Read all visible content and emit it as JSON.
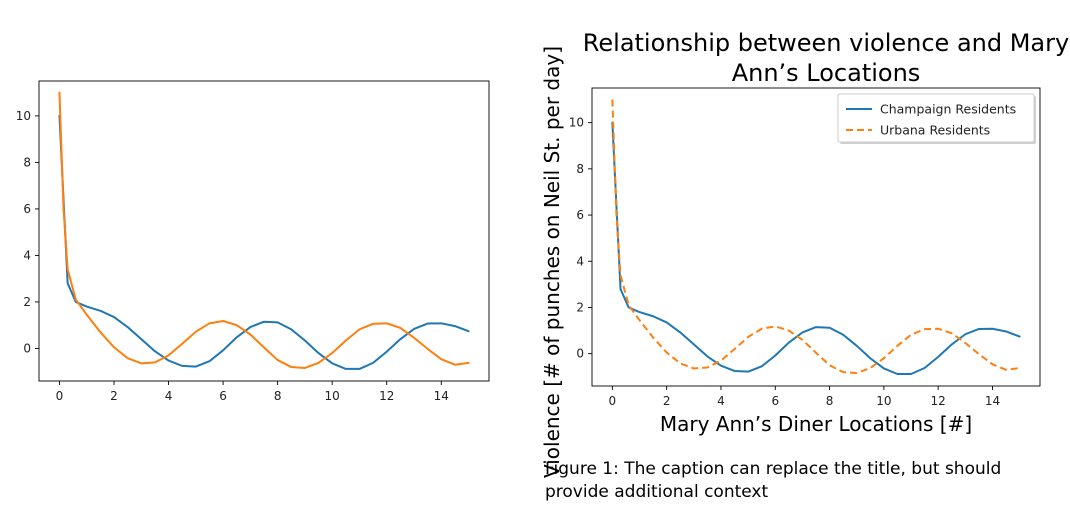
{
  "chart_data": [
    {
      "type": "line",
      "title": "",
      "xlabel": "",
      "ylabel": "",
      "xlim": [
        -0.75,
        15.75
      ],
      "ylim": [
        -1.4,
        11.5
      ],
      "x_ticks": [
        0,
        2,
        4,
        6,
        8,
        10,
        12,
        14
      ],
      "y_ticks": [
        0,
        2,
        4,
        6,
        8,
        10
      ],
      "grid": false,
      "legend": null,
      "series": [
        {
          "color": "#1f77b4",
          "x": [
            0,
            0.3,
            0.6,
            1,
            1.5,
            2,
            2.5,
            3,
            3.5,
            4,
            4.5,
            5,
            5.5,
            6,
            6.5,
            7,
            7.5,
            8,
            8.5,
            9,
            9.5,
            10,
            10.5,
            11,
            11.5,
            12,
            12.5,
            13,
            13.5,
            14,
            14.5,
            15
          ],
          "values": [
            10,
            2.8,
            2.0,
            1.8,
            1.62,
            1.35,
            0.92,
            0.4,
            -0.12,
            -0.52,
            -0.75,
            -0.78,
            -0.55,
            -0.08,
            0.48,
            0.92,
            1.15,
            1.12,
            0.82,
            0.34,
            -0.2,
            -0.64,
            -0.88,
            -0.88,
            -0.62,
            -0.14,
            0.4,
            0.84,
            1.07,
            1.08,
            0.96,
            0.74
          ]
        },
        {
          "color": "#ff7f0e",
          "x": [
            0,
            0.15,
            0.3,
            0.6,
            1,
            1.5,
            2,
            2.5,
            3,
            3.5,
            4,
            4.5,
            5,
            5.5,
            6,
            6.5,
            7,
            7.5,
            8,
            8.5,
            9,
            9.5,
            10,
            10.5,
            11,
            11.5,
            12,
            12.5,
            13,
            13.5,
            14,
            14.5,
            15
          ],
          "values": [
            11,
            6.0,
            3.4,
            2.1,
            1.45,
            0.7,
            0.05,
            -0.42,
            -0.64,
            -0.6,
            -0.3,
            0.2,
            0.72,
            1.08,
            1.18,
            1.0,
            0.6,
            0.04,
            -0.5,
            -0.8,
            -0.84,
            -0.62,
            -0.2,
            0.34,
            0.82,
            1.06,
            1.08,
            0.88,
            0.46,
            -0.02,
            -0.46,
            -0.7,
            -0.62
          ]
        }
      ]
    },
    {
      "type": "line",
      "title": "Relationship between violence and Mary Ann’s Locations",
      "title_lines": [
        "Relationship between violence and Mary",
        "Ann’s Locations"
      ],
      "xlabel": "Mary Ann’s Diner Locations [#]",
      "ylabel": "Violence [# of punches on Neil St. per day]",
      "xlim": [
        -0.75,
        15.75
      ],
      "ylim": [
        -1.4,
        11.5
      ],
      "x_ticks": [
        0,
        2,
        4,
        6,
        8,
        10,
        12,
        14
      ],
      "y_ticks": [
        0,
        2,
        4,
        6,
        8,
        10
      ],
      "grid": false,
      "legend": "top-right",
      "series": [
        {
          "name": "Champaign Residents",
          "color": "#1f77b4",
          "dash": "solid",
          "x": [
            0,
            0.3,
            0.6,
            1,
            1.5,
            2,
            2.5,
            3,
            3.5,
            4,
            4.5,
            5,
            5.5,
            6,
            6.5,
            7,
            7.5,
            8,
            8.5,
            9,
            9.5,
            10,
            10.5,
            11,
            11.5,
            12,
            12.5,
            13,
            13.5,
            14,
            14.5,
            15
          ],
          "values": [
            10,
            2.8,
            2.0,
            1.8,
            1.62,
            1.35,
            0.92,
            0.4,
            -0.12,
            -0.52,
            -0.75,
            -0.78,
            -0.55,
            -0.08,
            0.48,
            0.92,
            1.15,
            1.12,
            0.82,
            0.34,
            -0.2,
            -0.64,
            -0.88,
            -0.88,
            -0.62,
            -0.14,
            0.4,
            0.84,
            1.07,
            1.08,
            0.96,
            0.74
          ]
        },
        {
          "name": "Urbana Residents",
          "color": "#ff7f0e",
          "dash": "dashed",
          "x": [
            0,
            0.15,
            0.3,
            0.6,
            1,
            1.5,
            2,
            2.5,
            3,
            3.5,
            4,
            4.5,
            5,
            5.5,
            6,
            6.5,
            7,
            7.5,
            8,
            8.5,
            9,
            9.5,
            10,
            10.5,
            11,
            11.5,
            12,
            12.5,
            13,
            13.5,
            14,
            14.5,
            15
          ],
          "values": [
            11,
            6.0,
            3.4,
            2.1,
            1.45,
            0.7,
            0.05,
            -0.42,
            -0.64,
            -0.6,
            -0.3,
            0.2,
            0.72,
            1.08,
            1.18,
            1.0,
            0.6,
            0.04,
            -0.5,
            -0.8,
            -0.84,
            -0.62,
            -0.2,
            0.34,
            0.82,
            1.06,
            1.08,
            0.88,
            0.46,
            -0.02,
            -0.46,
            -0.7,
            -0.62
          ]
        }
      ]
    }
  ],
  "caption": "Figure 1: The caption can replace the title, but should provide additional context"
}
